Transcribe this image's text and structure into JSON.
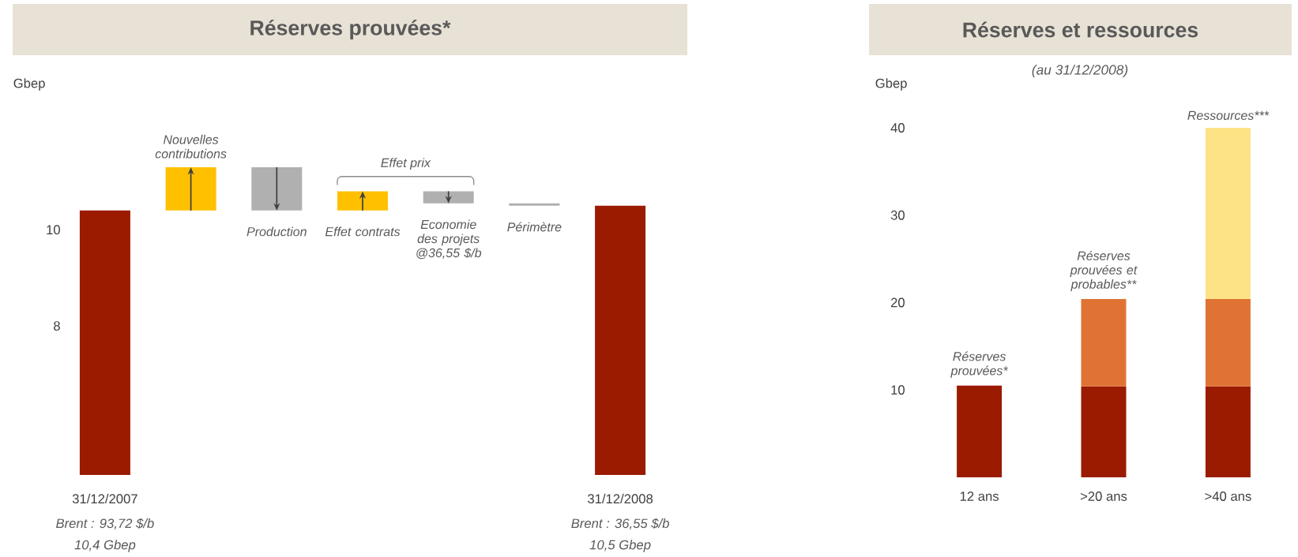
{
  "chart_data": [
    {
      "type": "bar",
      "title": "Réserves prouvées*",
      "ylabel": "Gbep",
      "categories": [
        "31/12/2007",
        "Nouvelles contributions",
        "Production",
        "Effet contrats",
        "Economie des projets @36,55 $/b",
        "Périmètre",
        "31/12/2008"
      ],
      "values": [
        10.4,
        0.9,
        -0.9,
        0.4,
        -0.25,
        -0.05,
        10.5
      ],
      "base": [
        null,
        10.4,
        11.3,
        10.4,
        10.8,
        10.55,
        null
      ],
      "colors": [
        "#9a1b00",
        "#ffc000",
        "#b0b0b0",
        "#ffc000",
        "#b0b0b0",
        "#b0b0b0",
        "#9a1b00"
      ],
      "ylim": [
        4.9,
        11.3
      ],
      "yticks": [
        8,
        10
      ],
      "annotations": [
        "Effet prix",
        "Brent : 93,72 $/b",
        "10,4 Gbep",
        "Brent : 36,55 $/b",
        "10,5 Gbep"
      ]
    },
    {
      "type": "bar",
      "title": "Réserves et ressources",
      "subtitle": "(au 31/12/2008)",
      "ylabel": "Gbep",
      "categories": [
        "12 ans",
        ">20 ans",
        ">40 ans"
      ],
      "stacked": true,
      "series": [
        {
          "name": "Réserves prouvées*",
          "color": "#9a1b00",
          "values": [
            10.5,
            10.4,
            10.4
          ]
        },
        {
          "name": "Réserves prouvées et probables**",
          "color": "#e07334",
          "values": [
            null,
            10.0,
            10.0
          ]
        },
        {
          "name": "Ressources***",
          "color": "#fde385",
          "values": [
            null,
            null,
            19.6
          ]
        }
      ],
      "ylim": [
        0,
        40
      ],
      "yticks": [
        10,
        20,
        30,
        40
      ]
    }
  ]
}
